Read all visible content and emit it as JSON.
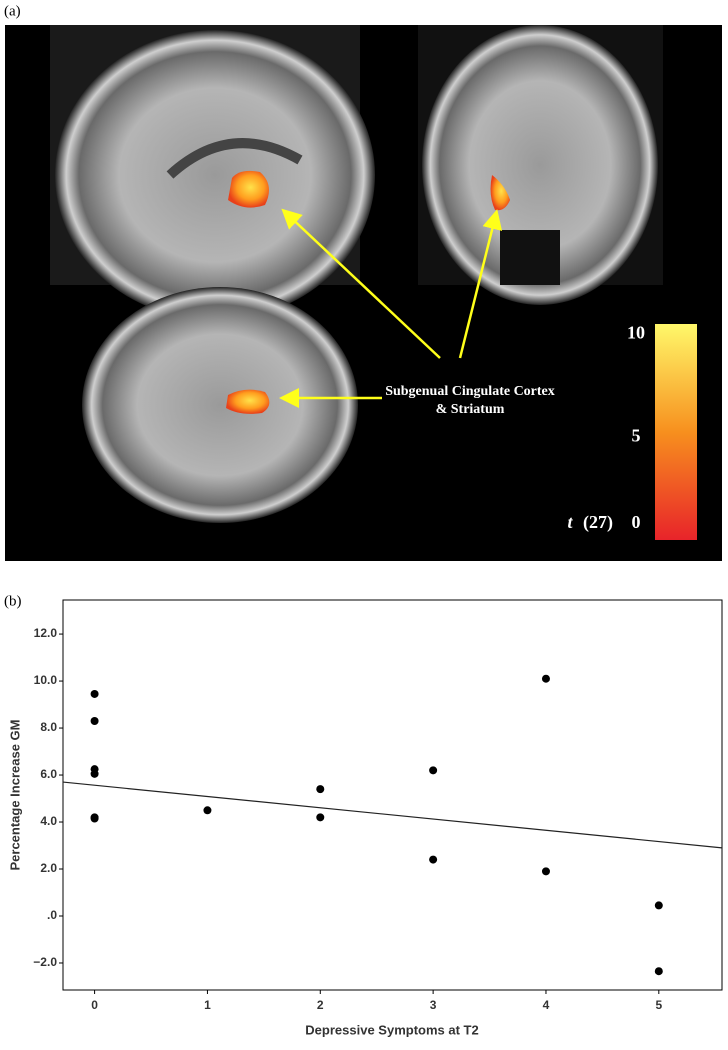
{
  "figure_a": {
    "panel_label": "(a)",
    "annotation": [
      "Subgenual Cingulate Cortex",
      "& Striatum"
    ],
    "colorbar": {
      "variable": "t",
      "df": "(27)",
      "lim": [
        0,
        10.5
      ],
      "ticks": [
        0,
        5,
        10
      ]
    }
  },
  "chart_data": {
    "type": "scatter",
    "panel_label": "(b)",
    "x_label": "Depressive Symptoms at T2",
    "y_label": "Percentage Increase GM",
    "x": [
      0,
      0,
      0,
      0,
      0,
      0,
      1,
      2,
      2,
      3,
      3,
      4,
      4,
      5,
      5
    ],
    "y": [
      9.45,
      8.3,
      6.25,
      6.05,
      4.2,
      4.15,
      4.5,
      5.4,
      4.2,
      6.2,
      2.4,
      10.1,
      1.9,
      0.45,
      -2.35
    ],
    "color": "#000000",
    "fit_line": {
      "x": [
        -0.28,
        5.56
      ],
      "y": [
        5.7,
        2.9
      ]
    },
    "xlim": [
      -0.28,
      5.56
    ],
    "ylim": [
      -3.15,
      13.45
    ],
    "xticks": [
      0,
      1,
      2,
      3,
      4,
      5
    ],
    "yticks": [
      {
        "value": -2,
        "label": "−2.0"
      },
      {
        "value": 0,
        "label": ".0"
      },
      {
        "value": 2,
        "label": "2.0"
      },
      {
        "value": 4,
        "label": "4.0"
      },
      {
        "value": 6,
        "label": "6.0"
      },
      {
        "value": 8,
        "label": "8.0"
      },
      {
        "value": 10,
        "label": "10.0"
      },
      {
        "value": 12,
        "label": "12.0"
      }
    ]
  }
}
